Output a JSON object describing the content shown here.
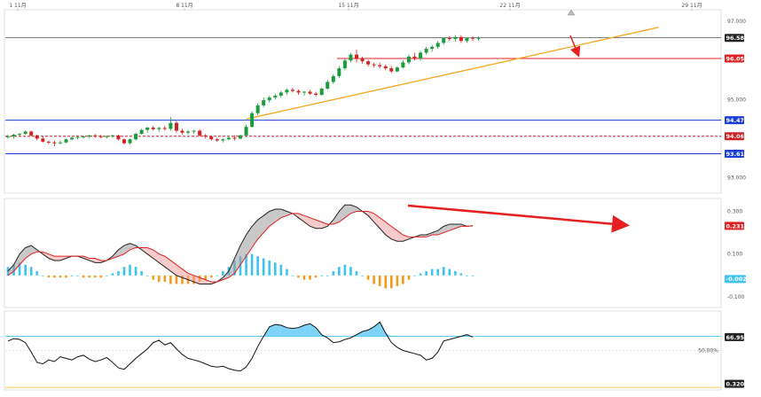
{
  "chart_data": [
    {
      "type": "candlestick",
      "panel": "price",
      "x_ticks": [
        "1 11月",
        "8 11月",
        "15 11月",
        "22 11月",
        "29 11月"
      ],
      "y_ticks": [
        "97.000",
        "95.000",
        "93.000"
      ],
      "ylim": [
        92.6,
        97.3
      ],
      "candles": [
        [
          94.05,
          94.1,
          94.0,
          94.05
        ],
        [
          94.05,
          94.12,
          94.0,
          94.1
        ],
        [
          94.1,
          94.15,
          94.05,
          94.12
        ],
        [
          94.12,
          94.2,
          94.1,
          94.18
        ],
        [
          94.18,
          94.2,
          94.05,
          94.08
        ],
        [
          94.08,
          94.1,
          93.95,
          94.0
        ],
        [
          94.0,
          94.05,
          93.9,
          93.92
        ],
        [
          93.92,
          93.95,
          93.85,
          93.9
        ],
        [
          93.9,
          93.95,
          93.8,
          93.88
        ],
        [
          93.88,
          93.95,
          93.85,
          93.9
        ],
        [
          93.9,
          94.0,
          93.88,
          93.98
        ],
        [
          93.98,
          94.05,
          93.95,
          94.02
        ],
        [
          94.02,
          94.06,
          93.98,
          94.04
        ],
        [
          94.04,
          94.08,
          94.0,
          94.05
        ],
        [
          94.05,
          94.1,
          94.0,
          94.08
        ],
        [
          94.08,
          94.12,
          94.02,
          94.06
        ],
        [
          94.06,
          94.1,
          94.0,
          94.05
        ],
        [
          94.05,
          94.08,
          94.0,
          94.06
        ],
        [
          94.06,
          94.1,
          94.02,
          94.08
        ],
        [
          94.08,
          94.1,
          93.95,
          93.98
        ],
        [
          93.98,
          94.0,
          93.85,
          93.88
        ],
        [
          93.88,
          94.0,
          93.85,
          93.98
        ],
        [
          93.98,
          94.15,
          93.95,
          94.12
        ],
        [
          94.12,
          94.25,
          94.1,
          94.22
        ],
        [
          94.22,
          94.3,
          94.15,
          94.28
        ],
        [
          94.28,
          94.32,
          94.2,
          94.24
        ],
        [
          94.24,
          94.3,
          94.18,
          94.27
        ],
        [
          94.27,
          94.32,
          94.2,
          94.25
        ],
        [
          94.25,
          94.55,
          94.2,
          94.4
        ],
        [
          94.4,
          94.45,
          94.15,
          94.2
        ],
        [
          94.2,
          94.25,
          94.1,
          94.15
        ],
        [
          94.15,
          94.22,
          94.1,
          94.18
        ],
        [
          94.18,
          94.22,
          94.12,
          94.2
        ],
        [
          94.2,
          94.24,
          94.05,
          94.08
        ],
        [
          94.08,
          94.12,
          94.0,
          94.05
        ],
        [
          94.05,
          94.08,
          93.95,
          93.98
        ],
        [
          93.98,
          94.02,
          93.92,
          93.95
        ],
        [
          93.95,
          94.0,
          93.9,
          93.98
        ],
        [
          93.98,
          94.05,
          93.95,
          94.02
        ],
        [
          94.02,
          94.08,
          93.95,
          94.0
        ],
        [
          94.0,
          94.1,
          93.98,
          94.08
        ],
        [
          94.08,
          94.35,
          94.05,
          94.3
        ],
        [
          94.3,
          94.7,
          94.28,
          94.65
        ],
        [
          94.65,
          94.9,
          94.6,
          94.85
        ],
        [
          94.85,
          95.05,
          94.8,
          94.98
        ],
        [
          94.98,
          95.1,
          94.92,
          95.05
        ],
        [
          95.05,
          95.15,
          95.0,
          95.1
        ],
        [
          95.1,
          95.22,
          95.05,
          95.18
        ],
        [
          95.18,
          95.28,
          95.12,
          95.25
        ],
        [
          95.25,
          95.3,
          95.18,
          95.22
        ],
        [
          95.22,
          95.26,
          95.12,
          95.18
        ],
        [
          95.18,
          95.22,
          95.1,
          95.2
        ],
        [
          95.2,
          95.25,
          95.12,
          95.15
        ],
        [
          95.15,
          95.2,
          95.08,
          95.12
        ],
        [
          95.12,
          95.3,
          95.1,
          95.28
        ],
        [
          95.28,
          95.5,
          95.25,
          95.45
        ],
        [
          95.45,
          95.65,
          95.4,
          95.6
        ],
        [
          95.6,
          95.85,
          95.55,
          95.8
        ],
        [
          95.8,
          96.05,
          95.75,
          96.0
        ],
        [
          96.0,
          96.2,
          95.95,
          96.15
        ],
        [
          96.15,
          96.28,
          95.95,
          96.05
        ],
        [
          96.05,
          96.1,
          95.92,
          95.98
        ],
        [
          95.98,
          96.02,
          95.85,
          95.9
        ],
        [
          95.9,
          95.95,
          95.82,
          95.88
        ],
        [
          95.88,
          95.95,
          95.8,
          95.85
        ],
        [
          95.85,
          95.9,
          95.75,
          95.8
        ],
        [
          95.8,
          95.85,
          95.68,
          95.72
        ],
        [
          95.72,
          95.85,
          95.7,
          95.82
        ],
        [
          95.82,
          96.0,
          95.8,
          95.95
        ],
        [
          95.95,
          96.15,
          95.9,
          96.1
        ],
        [
          96.1,
          96.2,
          96.0,
          96.05
        ],
        [
          96.05,
          96.25,
          96.0,
          96.2
        ],
        [
          96.2,
          96.35,
          96.15,
          96.3
        ],
        [
          96.3,
          96.4,
          96.22,
          96.35
        ],
        [
          96.35,
          96.5,
          96.3,
          96.45
        ],
        [
          96.45,
          96.6,
          96.4,
          96.58
        ],
        [
          96.58,
          96.62,
          96.5,
          96.55
        ],
        [
          96.55,
          96.65,
          96.48,
          96.6
        ],
        [
          96.6,
          96.65,
          96.45,
          96.5
        ],
        [
          96.5,
          96.6,
          96.45,
          96.58
        ],
        [
          96.58,
          96.62,
          96.5,
          96.56
        ],
        [
          96.56,
          96.62,
          96.5,
          96.58
        ]
      ],
      "price_marker": "96.583",
      "horizontal_levels": [
        {
          "label": "96.050",
          "value": 96.05,
          "color": "#e02020",
          "style": "solid"
        },
        {
          "label": "94.470",
          "value": 94.47,
          "color": "#1a3fd6",
          "style": "solid"
        },
        {
          "label": "94.060",
          "value": 94.06,
          "color": "#d02020",
          "style": "dashed"
        },
        {
          "label": "93.610",
          "value": 93.61,
          "color": "#1a3fd6",
          "style": "solid"
        }
      ],
      "trendline": {
        "color": "#f5a623",
        "from": [
          41,
          94.5
        ],
        "to": [
          112,
          96.85
        ]
      }
    },
    {
      "type": "macd",
      "panel": "macd",
      "y_ticks": [
        "0.300",
        "0.100",
        "-0.100"
      ],
      "ylim": [
        -0.15,
        0.36
      ],
      "line_marker": "0.2318",
      "hist_marker": "-0.0021",
      "macd": [
        0.02,
        0.05,
        0.1,
        0.13,
        0.14,
        0.12,
        0.1,
        0.08,
        0.07,
        0.07,
        0.08,
        0.09,
        0.09,
        0.08,
        0.07,
        0.06,
        0.06,
        0.07,
        0.09,
        0.12,
        0.14,
        0.15,
        0.14,
        0.12,
        0.1,
        0.08,
        0.06,
        0.04,
        0.02,
        0.0,
        -0.01,
        -0.02,
        -0.03,
        -0.04,
        -0.04,
        -0.04,
        -0.03,
        -0.01,
        0.02,
        0.08,
        0.14,
        0.19,
        0.23,
        0.26,
        0.28,
        0.3,
        0.31,
        0.31,
        0.3,
        0.29,
        0.27,
        0.25,
        0.23,
        0.22,
        0.22,
        0.23,
        0.26,
        0.3,
        0.33,
        0.33,
        0.32,
        0.3,
        0.28,
        0.25,
        0.22,
        0.19,
        0.17,
        0.16,
        0.16,
        0.17,
        0.18,
        0.19,
        0.19,
        0.2,
        0.21,
        0.23,
        0.24,
        0.24,
        0.24,
        0.23,
        0.232
      ],
      "signal": [
        0.0,
        0.02,
        0.05,
        0.08,
        0.1,
        0.11,
        0.11,
        0.1,
        0.09,
        0.09,
        0.09,
        0.09,
        0.09,
        0.09,
        0.08,
        0.08,
        0.07,
        0.07,
        0.08,
        0.09,
        0.1,
        0.12,
        0.13,
        0.13,
        0.13,
        0.12,
        0.1,
        0.09,
        0.07,
        0.05,
        0.03,
        0.01,
        0.0,
        -0.01,
        -0.02,
        -0.03,
        -0.03,
        -0.02,
        -0.01,
        0.01,
        0.05,
        0.09,
        0.13,
        0.17,
        0.2,
        0.23,
        0.25,
        0.27,
        0.28,
        0.29,
        0.29,
        0.28,
        0.27,
        0.26,
        0.25,
        0.24,
        0.24,
        0.25,
        0.27,
        0.29,
        0.3,
        0.3,
        0.3,
        0.29,
        0.27,
        0.25,
        0.23,
        0.21,
        0.19,
        0.18,
        0.18,
        0.18,
        0.18,
        0.19,
        0.19,
        0.2,
        0.21,
        0.22,
        0.23,
        0.23,
        0.233
      ],
      "histogram": [
        0.04,
        0.05,
        0.06,
        0.05,
        0.04,
        0.02,
        0.0,
        -0.01,
        -0.01,
        -0.01,
        -0.01,
        0.0,
        0.0,
        -0.01,
        -0.01,
        -0.01,
        -0.01,
        0.0,
        0.01,
        0.02,
        0.04,
        0.05,
        0.04,
        0.02,
        0.0,
        -0.02,
        -0.03,
        -0.03,
        -0.04,
        -0.04,
        -0.04,
        -0.04,
        -0.04,
        -0.03,
        -0.02,
        -0.01,
        0.0,
        0.02,
        0.04,
        0.07,
        0.09,
        0.1,
        0.1,
        0.09,
        0.08,
        0.07,
        0.06,
        0.05,
        0.03,
        0.0,
        -0.01,
        -0.02,
        -0.02,
        -0.01,
        0.0,
        0.0,
        0.02,
        0.04,
        0.05,
        0.04,
        0.02,
        0.0,
        -0.02,
        -0.04,
        -0.05,
        -0.06,
        -0.06,
        -0.05,
        -0.04,
        -0.02,
        0.0,
        0.01,
        0.02,
        0.03,
        0.03,
        0.04,
        0.03,
        0.02,
        0.01,
        0.0,
        0.0
      ]
    },
    {
      "type": "line",
      "panel": "oscillator",
      "y_ticks": [
        "50.00%"
      ],
      "ylim": [
        0,
        100
      ],
      "upper_level": 68.0,
      "lower_level": 3.2,
      "line_marker": "66.95%",
      "level_marker": "0.3200",
      "values": [
        62,
        65,
        64,
        60,
        48,
        35,
        33,
        38,
        36,
        42,
        40,
        38,
        42,
        44,
        39,
        36,
        38,
        41,
        35,
        28,
        26,
        33,
        40,
        46,
        52,
        60,
        63,
        57,
        60,
        52,
        45,
        40,
        38,
        36,
        33,
        30,
        29,
        30,
        27,
        25,
        24,
        29,
        40,
        55,
        68,
        80,
        83,
        82,
        79,
        78,
        79,
        82,
        84,
        79,
        70,
        66,
        60,
        61,
        64,
        66,
        70,
        74,
        76,
        80,
        86,
        72,
        60,
        54,
        50,
        48,
        46,
        44,
        38,
        40,
        48,
        62,
        64,
        66,
        68,
        70,
        67
      ]
    }
  ]
}
